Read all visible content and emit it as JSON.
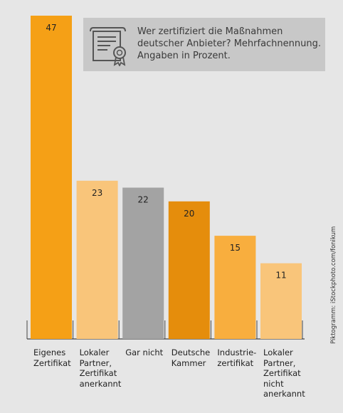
{
  "title": "Wer zertifiziert die Maßnahmen deutscher Anbieter? Mehrfachnennung. Angaben in Prozent.",
  "credit": "Piktogramm: iStockphoto.com/fonikum",
  "icon": "certificate-icon",
  "chart_data": {
    "type": "bar",
    "title": "Wer zertifiziert die Maßnahmen deutscher Anbieter? Mehrfachnennung. Angaben in Prozent.",
    "categories": [
      "Eigenes\nZertifikat",
      "Lokaler\nPartner,\nZertifikat\nanerkannt",
      "Gar nicht",
      "Deutsche\nKammer",
      "Industrie-\nzertifikat",
      "Lokaler\nPartner,\nZertifikat\nnicht\nanerkannt"
    ],
    "values": [
      47,
      23,
      22,
      20,
      15,
      11
    ],
    "colors": [
      "#f5a016",
      "#f9c57a",
      "#a3a3a3",
      "#e58d0c",
      "#f8ae3e",
      "#f9c57a"
    ],
    "ylim": [
      0,
      47
    ],
    "grid": false,
    "legend": "none"
  }
}
